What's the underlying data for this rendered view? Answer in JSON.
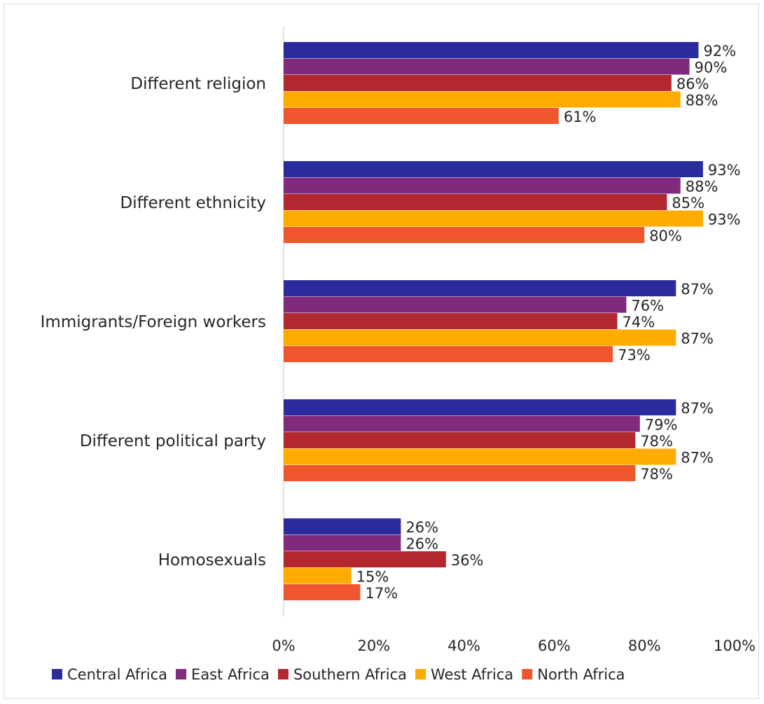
{
  "chart_data": {
    "type": "bar",
    "orientation": "horizontal",
    "title": "",
    "xlabel": "",
    "ylabel": "",
    "categories": [
      "Different religion",
      "Different ethnicity",
      "Immigrants/Foreign workers",
      "Different political party",
      "Homosexuals"
    ],
    "series": [
      {
        "name": "Central Africa",
        "color": "#2a2b9c",
        "values": [
          92,
          93,
          87,
          87,
          26
        ]
      },
      {
        "name": "East Africa",
        "color": "#7f2a7c",
        "values": [
          90,
          88,
          76,
          79,
          26
        ]
      },
      {
        "name": "Southern Africa",
        "color": "#b3282e",
        "values": [
          86,
          85,
          74,
          78,
          36
        ]
      },
      {
        "name": "West Africa",
        "color": "#ffab00",
        "values": [
          88,
          93,
          87,
          87,
          15
        ]
      },
      {
        "name": "North Africa",
        "color": "#f0562d",
        "values": [
          61,
          80,
          73,
          78,
          17
        ]
      }
    ],
    "xlim": [
      0,
      100
    ],
    "x_ticks": [
      "0%",
      "20%",
      "40%",
      "60%",
      "80%",
      "100%"
    ],
    "value_suffix": "%",
    "grid": false,
    "legend_position": "bottom"
  }
}
